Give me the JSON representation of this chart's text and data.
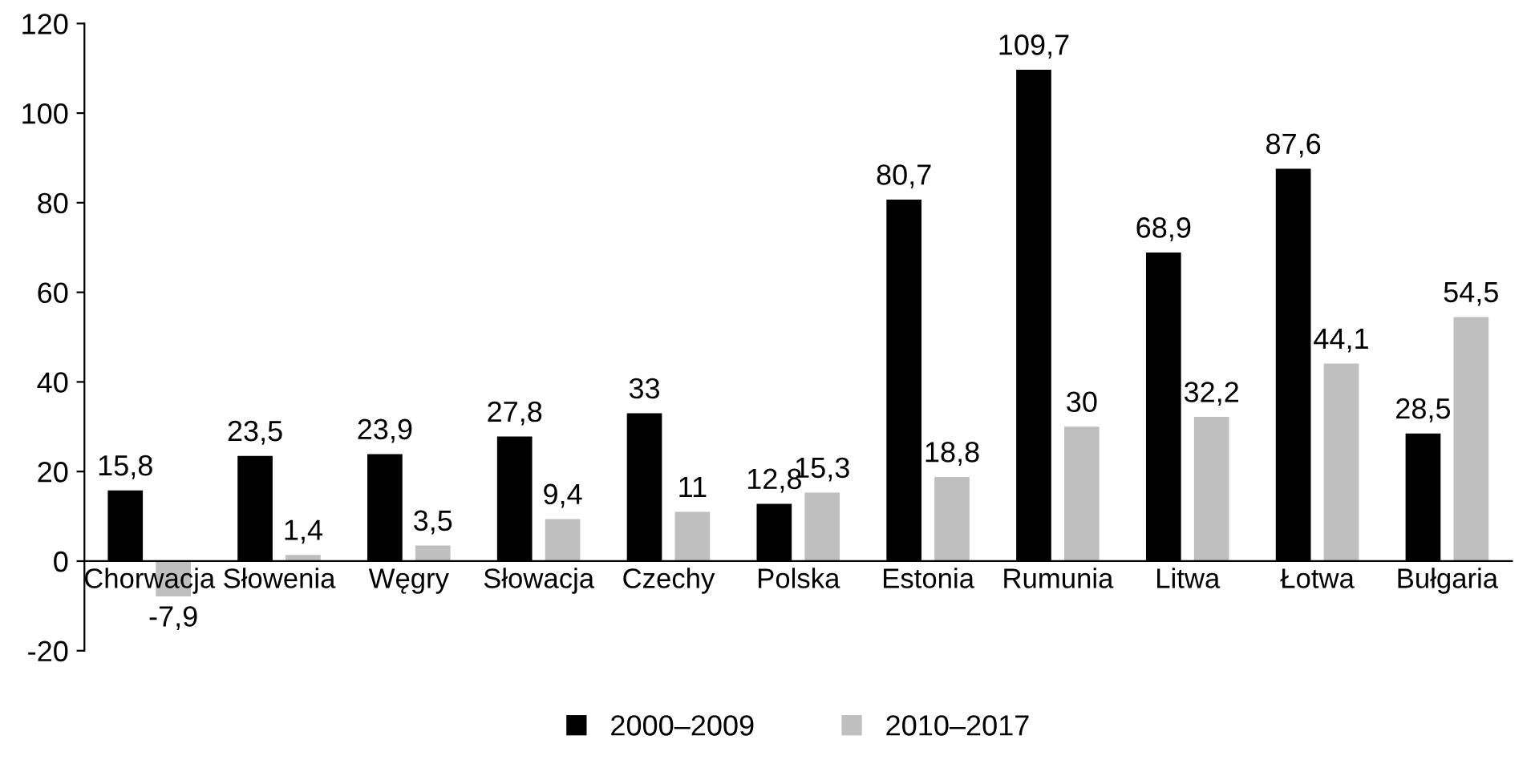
{
  "chart_data": {
    "type": "bar",
    "categories": [
      "Chorwacja",
      "Słowenia",
      "Węgry",
      "Słowacja",
      "Czechy",
      "Polska",
      "Estonia",
      "Rumunia",
      "Litwa",
      "Łotwa",
      "Bułgaria"
    ],
    "series": [
      {
        "name": "2000–2009",
        "color": "#000000",
        "values": [
          15.8,
          23.5,
          23.9,
          27.8,
          33,
          12.8,
          80.7,
          109.7,
          68.9,
          87.6,
          28.5
        ],
        "value_labels": [
          "15,8",
          "23,5",
          "23,9",
          "27,8",
          "33",
          "12,8",
          "80,7",
          "109,7",
          "68,9",
          "87,6",
          "28,5"
        ]
      },
      {
        "name": "2010–2017",
        "color": "#bfbfbf",
        "values": [
          -7.9,
          1.4,
          3.5,
          9.4,
          11,
          15.3,
          18.8,
          30,
          32.2,
          44.1,
          54.5
        ],
        "value_labels": [
          "-7,9",
          "1,4",
          "3,5",
          "9,4",
          "11",
          "15,3",
          "18,8",
          "30",
          "32,2",
          "44,1",
          "54,5"
        ]
      }
    ],
    "ylim": [
      -20,
      120
    ],
    "yticks": [
      -20,
      0,
      20,
      40,
      60,
      80,
      100,
      120
    ],
    "grid": false,
    "legend": "bottom"
  }
}
